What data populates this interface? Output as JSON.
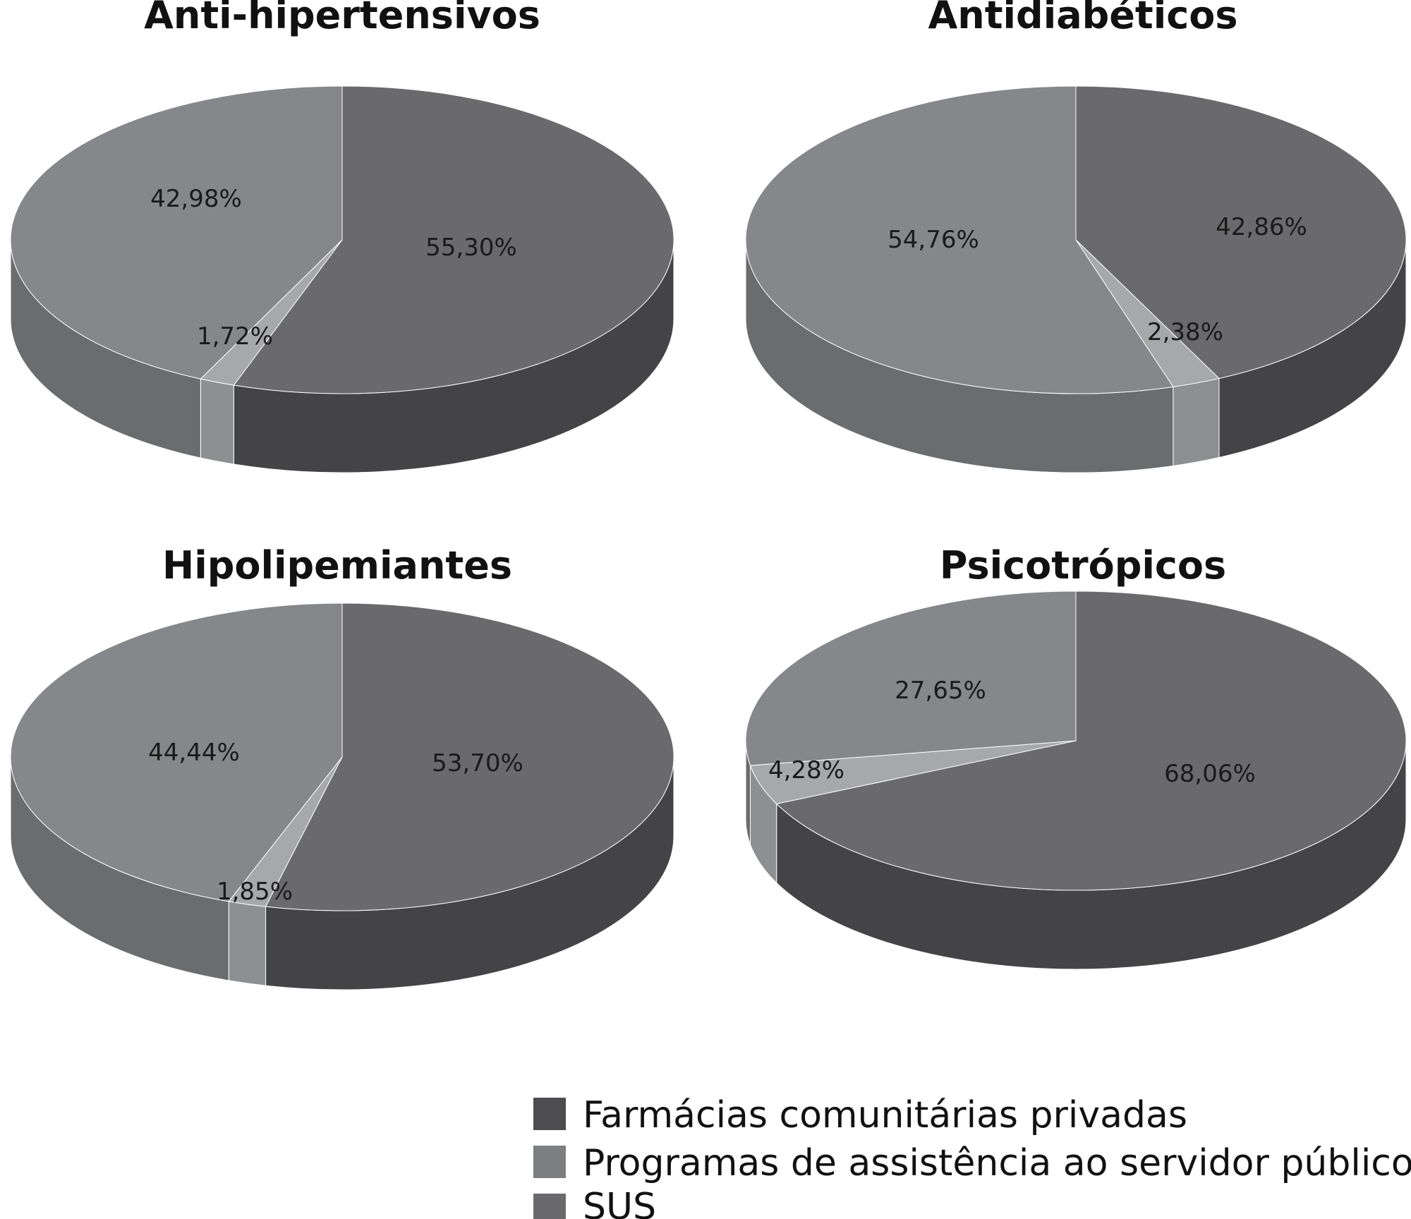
{
  "legend": [
    {
      "label": "Farmácias comunitárias privadas",
      "color": "#4d4d4f"
    },
    {
      "label": "Programas de assistência ao servidor público",
      "color": "#7d7e80"
    },
    {
      "label": "SUS",
      "color": "#6a6a6c"
    }
  ],
  "chart_data": [
    {
      "type": "pie",
      "title": "Anti-hipertensivos",
      "slices": [
        {
          "name": "Farmácias comunitárias privadas",
          "value": 55.3,
          "label": "55,30%"
        },
        {
          "name": "SUS",
          "value": 1.72,
          "label": "1,72%"
        },
        {
          "name": "Programas de assistência ao servidor público",
          "value": 42.98,
          "label": "42,98%"
        }
      ]
    },
    {
      "type": "pie",
      "title": "Antidiabéticos",
      "slices": [
        {
          "name": "Farmácias comunitárias privadas",
          "value": 42.86,
          "label": "42,86%"
        },
        {
          "name": "SUS",
          "value": 2.38,
          "label": "2,38%"
        },
        {
          "name": "Programas de assistência ao servidor público",
          "value": 54.76,
          "label": "54,76%"
        }
      ]
    },
    {
      "type": "pie",
      "title": "Hipolipemiantes",
      "slices": [
        {
          "name": "Farmácias comunitárias privadas",
          "value": 53.7,
          "label": "53,70%"
        },
        {
          "name": "SUS",
          "value": 1.85,
          "label": "1,85%"
        },
        {
          "name": "Programas de assistência ao servidor público",
          "value": 44.44,
          "label": "44,44%"
        }
      ]
    },
    {
      "type": "pie",
      "title": "Psicotrópicos",
      "slices": [
        {
          "name": "Farmácias comunitárias privadas",
          "value": 68.06,
          "label": "68,06%"
        },
        {
          "name": "SUS",
          "value": 4.28,
          "label": "4,28%"
        },
        {
          "name": "Programas de assistência ao servidor público",
          "value": 27.65,
          "label": "27,65%"
        }
      ]
    }
  ],
  "colors": {
    "Farmácias comunitárias privadas": {
      "top": "#6a6a6c",
      "side": "#444446"
    },
    "SUS": {
      "top": "#a7a8aa",
      "side": "#8e8f91"
    },
    "Programas de assistência ao servidor público": {
      "top": "#86878a",
      "side": "#6b6c6e"
    }
  }
}
